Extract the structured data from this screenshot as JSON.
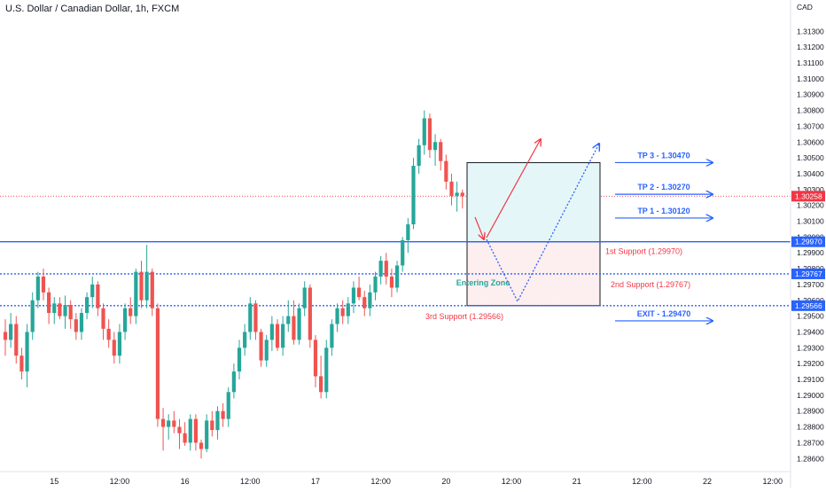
{
  "header": {
    "title": "U.S. Dollar / Canadian Dollar, 1h, FXCM"
  },
  "chart_data": {
    "type": "candlestick",
    "instrument": "U.S. Dollar / Canadian Dollar",
    "interval": "1h",
    "source": "FXCM",
    "currency_label": "CAD",
    "ylim": [
      1.2855,
      1.3155
    ],
    "y_ticks": [
      "1.31300",
      "1.31200",
      "1.31100",
      "1.31000",
      "1.30900",
      "1.30800",
      "1.30700",
      "1.30600",
      "1.30500",
      "1.30400",
      "1.30300",
      "1.30200",
      "1.30100",
      "1.30000",
      "1.29900",
      "1.29800",
      "1.29700",
      "1.29600",
      "1.29500",
      "1.29400",
      "1.29300",
      "1.29200",
      "1.29100",
      "1.29000",
      "1.28900",
      "1.28800",
      "1.28700",
      "1.28600"
    ],
    "x_ticks": [
      {
        "label": "12:00",
        "index": -3
      },
      {
        "label": "15",
        "index": 9
      },
      {
        "label": "12:00",
        "index": 21
      },
      {
        "label": "16",
        "index": 33
      },
      {
        "label": "12:00",
        "index": 45
      },
      {
        "label": "17",
        "index": 57
      },
      {
        "label": "12:00",
        "index": 69
      },
      {
        "label": "20",
        "index": 81
      },
      {
        "label": "12:00",
        "index": 93
      },
      {
        "label": "21",
        "index": 105
      },
      {
        "label": "12:00",
        "index": 117
      },
      {
        "label": "22",
        "index": 129
      },
      {
        "label": "12:00",
        "index": 141
      }
    ],
    "candles": [
      {
        "o": 1.294,
        "h": 1.2948,
        "l": 1.2925,
        "c": 1.2935
      },
      {
        "o": 1.2935,
        "h": 1.2952,
        "l": 1.293,
        "c": 1.2945
      },
      {
        "o": 1.2945,
        "h": 1.295,
        "l": 1.292,
        "c": 1.2925
      },
      {
        "o": 1.2925,
        "h": 1.293,
        "l": 1.291,
        "c": 1.2915
      },
      {
        "o": 1.2915,
        "h": 1.2945,
        "l": 1.2905,
        "c": 1.294
      },
      {
        "o": 1.294,
        "h": 1.2965,
        "l": 1.2935,
        "c": 1.296
      },
      {
        "o": 1.296,
        "h": 1.2978,
        "l": 1.2955,
        "c": 1.2975
      },
      {
        "o": 1.2975,
        "h": 1.298,
        "l": 1.296,
        "c": 1.2965
      },
      {
        "o": 1.2965,
        "h": 1.2968,
        "l": 1.2945,
        "c": 1.2952
      },
      {
        "o": 1.2952,
        "h": 1.2962,
        "l": 1.2945,
        "c": 1.2958
      },
      {
        "o": 1.2958,
        "h": 1.2962,
        "l": 1.2948,
        "c": 1.295
      },
      {
        "o": 1.295,
        "h": 1.2963,
        "l": 1.2942,
        "c": 1.2957
      },
      {
        "o": 1.2957,
        "h": 1.296,
        "l": 1.2942,
        "c": 1.2948
      },
      {
        "o": 1.2948,
        "h": 1.2952,
        "l": 1.2935,
        "c": 1.294
      },
      {
        "o": 1.294,
        "h": 1.2955,
        "l": 1.2935,
        "c": 1.2952
      },
      {
        "o": 1.2952,
        "h": 1.2965,
        "l": 1.2948,
        "c": 1.2962
      },
      {
        "o": 1.2962,
        "h": 1.2975,
        "l": 1.2955,
        "c": 1.297
      },
      {
        "o": 1.297,
        "h": 1.2972,
        "l": 1.295,
        "c": 1.2955
      },
      {
        "o": 1.2955,
        "h": 1.2958,
        "l": 1.2935,
        "c": 1.2942
      },
      {
        "o": 1.2942,
        "h": 1.2948,
        "l": 1.293,
        "c": 1.2935
      },
      {
        "o": 1.2935,
        "h": 1.294,
        "l": 1.292,
        "c": 1.2925
      },
      {
        "o": 1.2925,
        "h": 1.2945,
        "l": 1.292,
        "c": 1.294
      },
      {
        "o": 1.294,
        "h": 1.2958,
        "l": 1.2935,
        "c": 1.2955
      },
      {
        "o": 1.2955,
        "h": 1.2962,
        "l": 1.2945,
        "c": 1.295
      },
      {
        "o": 1.295,
        "h": 1.298,
        "l": 1.2945,
        "c": 1.2978
      },
      {
        "o": 1.2978,
        "h": 1.2985,
        "l": 1.2955,
        "c": 1.296
      },
      {
        "o": 1.296,
        "h": 1.2995,
        "l": 1.2955,
        "c": 1.2978
      },
      {
        "o": 1.2978,
        "h": 1.298,
        "l": 1.295,
        "c": 1.2955
      },
      {
        "o": 1.2955,
        "h": 1.2958,
        "l": 1.288,
        "c": 1.2885
      },
      {
        "o": 1.2885,
        "h": 1.2892,
        "l": 1.2865,
        "c": 1.288
      },
      {
        "o": 1.288,
        "h": 1.2888,
        "l": 1.2872,
        "c": 1.2884
      },
      {
        "o": 1.2884,
        "h": 1.289,
        "l": 1.2876,
        "c": 1.288
      },
      {
        "o": 1.288,
        "h": 1.2885,
        "l": 1.2866,
        "c": 1.2876
      },
      {
        "o": 1.2876,
        "h": 1.2883,
        "l": 1.2868,
        "c": 1.287
      },
      {
        "o": 1.287,
        "h": 1.2888,
        "l": 1.2865,
        "c": 1.2885
      },
      {
        "o": 1.2885,
        "h": 1.2888,
        "l": 1.2865,
        "c": 1.287
      },
      {
        "o": 1.287,
        "h": 1.2872,
        "l": 1.286,
        "c": 1.2866
      },
      {
        "o": 1.2866,
        "h": 1.2888,
        "l": 1.2864,
        "c": 1.2884
      },
      {
        "o": 1.2884,
        "h": 1.289,
        "l": 1.2874,
        "c": 1.2878
      },
      {
        "o": 1.2878,
        "h": 1.2893,
        "l": 1.2872,
        "c": 1.289
      },
      {
        "o": 1.289,
        "h": 1.2895,
        "l": 1.288,
        "c": 1.2885
      },
      {
        "o": 1.2885,
        "h": 1.2905,
        "l": 1.288,
        "c": 1.2902
      },
      {
        "o": 1.2902,
        "h": 1.292,
        "l": 1.2898,
        "c": 1.2915
      },
      {
        "o": 1.2915,
        "h": 1.2935,
        "l": 1.291,
        "c": 1.293
      },
      {
        "o": 1.293,
        "h": 1.2945,
        "l": 1.2925,
        "c": 1.294
      },
      {
        "o": 1.294,
        "h": 1.2962,
        "l": 1.2935,
        "c": 1.2958
      },
      {
        "o": 1.2958,
        "h": 1.296,
        "l": 1.2935,
        "c": 1.294
      },
      {
        "o": 1.294,
        "h": 1.2942,
        "l": 1.2918,
        "c": 1.2922
      },
      {
        "o": 1.2922,
        "h": 1.2938,
        "l": 1.2918,
        "c": 1.2935
      },
      {
        "o": 1.2935,
        "h": 1.295,
        "l": 1.2928,
        "c": 1.2945
      },
      {
        "o": 1.2945,
        "h": 1.2948,
        "l": 1.2928,
        "c": 1.293
      },
      {
        "o": 1.293,
        "h": 1.295,
        "l": 1.2925,
        "c": 1.2945
      },
      {
        "o": 1.2945,
        "h": 1.296,
        "l": 1.294,
        "c": 1.295
      },
      {
        "o": 1.295,
        "h": 1.296,
        "l": 1.2932,
        "c": 1.2935
      },
      {
        "o": 1.2935,
        "h": 1.2958,
        "l": 1.2932,
        "c": 1.2955
      },
      {
        "o": 1.2955,
        "h": 1.2972,
        "l": 1.295,
        "c": 1.2968
      },
      {
        "o": 1.2968,
        "h": 1.297,
        "l": 1.293,
        "c": 1.2935
      },
      {
        "o": 1.2935,
        "h": 1.2938,
        "l": 1.2905,
        "c": 1.2912
      },
      {
        "o": 1.2912,
        "h": 1.2925,
        "l": 1.2898,
        "c": 1.2902
      },
      {
        "o": 1.2902,
        "h": 1.2935,
        "l": 1.2898,
        "c": 1.293
      },
      {
        "o": 1.293,
        "h": 1.2948,
        "l": 1.2925,
        "c": 1.2945
      },
      {
        "o": 1.2945,
        "h": 1.2958,
        "l": 1.294,
        "c": 1.2955
      },
      {
        "o": 1.2955,
        "h": 1.296,
        "l": 1.2945,
        "c": 1.295
      },
      {
        "o": 1.295,
        "h": 1.2962,
        "l": 1.2945,
        "c": 1.2958
      },
      {
        "o": 1.2958,
        "h": 1.2972,
        "l": 1.2952,
        "c": 1.2968
      },
      {
        "o": 1.2968,
        "h": 1.2975,
        "l": 1.296,
        "c": 1.2962
      },
      {
        "o": 1.2962,
        "h": 1.2966,
        "l": 1.295,
        "c": 1.2955
      },
      {
        "o": 1.2955,
        "h": 1.297,
        "l": 1.295,
        "c": 1.2965
      },
      {
        "o": 1.2965,
        "h": 1.2978,
        "l": 1.296,
        "c": 1.2975
      },
      {
        "o": 1.2975,
        "h": 1.2988,
        "l": 1.297,
        "c": 1.2985
      },
      {
        "o": 1.2985,
        "h": 1.299,
        "l": 1.297,
        "c": 1.2975
      },
      {
        "o": 1.2975,
        "h": 1.298,
        "l": 1.2962,
        "c": 1.2968
      },
      {
        "o": 1.2968,
        "h": 1.2985,
        "l": 1.2965,
        "c": 1.2982
      },
      {
        "o": 1.2982,
        "h": 1.3,
        "l": 1.2978,
        "c": 1.2998
      },
      {
        "o": 1.2998,
        "h": 1.3012,
        "l": 1.299,
        "c": 1.3008
      },
      {
        "o": 1.3008,
        "h": 1.305,
        "l": 1.3005,
        "c": 1.3045
      },
      {
        "o": 1.3045,
        "h": 1.3062,
        "l": 1.304,
        "c": 1.3058
      },
      {
        "o": 1.3058,
        "h": 1.308,
        "l": 1.3052,
        "c": 1.3075
      },
      {
        "o": 1.3075,
        "h": 1.3078,
        "l": 1.305,
        "c": 1.3055
      },
      {
        "o": 1.3055,
        "h": 1.3065,
        "l": 1.3045,
        "c": 1.306
      },
      {
        "o": 1.306,
        "h": 1.3062,
        "l": 1.3042,
        "c": 1.3048
      },
      {
        "o": 1.3048,
        "h": 1.3052,
        "l": 1.303,
        "c": 1.3035
      },
      {
        "o": 1.3035,
        "h": 1.304,
        "l": 1.302,
        "c": 1.3026
      },
      {
        "o": 1.3026,
        "h": 1.3035,
        "l": 1.3016,
        "c": 1.3028
      },
      {
        "o": 1.3028,
        "h": 1.303,
        "l": 1.3018,
        "c": 1.30258
      }
    ],
    "last_price": "1.30258",
    "levels": [
      {
        "key": "first_support",
        "price": 1.2997,
        "axis_label": "1.29970",
        "text": "1st Support (1.29970)",
        "style": "solid"
      },
      {
        "key": "second_support",
        "price": 1.29767,
        "axis_label": "1.29767",
        "text": "2nd Support (1.29767)",
        "style": "dotted"
      },
      {
        "key": "third_support",
        "price": 1.29566,
        "axis_label": "1.29566",
        "text": "3rd Support (1.29566)",
        "style": "dotted"
      }
    ],
    "targets": [
      {
        "key": "tp3",
        "price": 1.3047,
        "text": "TP 3 - 1.30470",
        "color": "#2962ff"
      },
      {
        "key": "tp2",
        "price": 1.3027,
        "text": "TP 2 - 1.30270",
        "color": "#2962ff"
      },
      {
        "key": "tp1",
        "price": 1.3012,
        "text": "TP 1 - 1.30120",
        "color": "#2962ff"
      },
      {
        "key": "exit",
        "price": 1.2947,
        "text": "EXIT - 1.29470",
        "color": "#f23645"
      }
    ],
    "entering_zone_label": "Entering Zone",
    "colors": {
      "up": "#26a69a",
      "down": "#ef5350",
      "support_line": "#2962ff",
      "axis_tag": "#2962ff",
      "last_price_tag": "#f23645",
      "zone_profit": "#e4f6f8",
      "zone_loss": "#fdeeef",
      "support_text": "#f23645",
      "entering_zone_text": "#26a69a",
      "target_text": "#2962ff",
      "arrow_solid": "#f23645",
      "arrow_dotted": "#2962ff"
    }
  }
}
